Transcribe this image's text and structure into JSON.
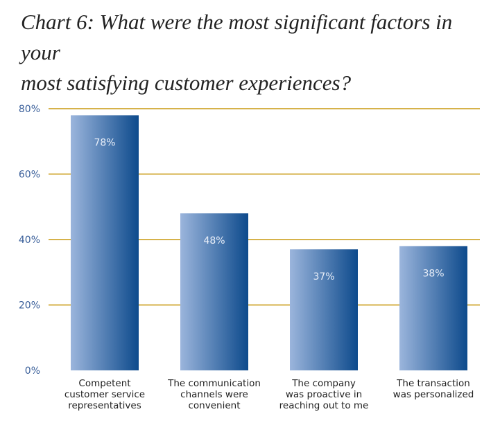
{
  "chart_data": {
    "type": "bar",
    "title": "Chart 6: What were the most significant factors in your most satisfying customer experiences?",
    "title_lines": [
      "Chart 6: What were the most significant factors in your",
      "most satisfying customer experiences?"
    ],
    "categories": [
      "Competent customer service representatives",
      "The communication channels were convenient",
      "The company was proactive in reaching out to me",
      "The transaction was personalized"
    ],
    "category_lines": [
      [
        "Competent",
        "customer service",
        "representatives"
      ],
      [
        "The communication",
        "channels were",
        "convenient"
      ],
      [
        "The company",
        "was proactive in",
        "reaching out to me"
      ],
      [
        "The transaction",
        "was personalized"
      ]
    ],
    "values": [
      78,
      48,
      37,
      38
    ],
    "data_labels": [
      "78%",
      "48%",
      "37%",
      "38%"
    ],
    "yticks": [
      0,
      20,
      40,
      60,
      80
    ],
    "ytick_labels": [
      "0%",
      "20%",
      "40%",
      "60%",
      "80%"
    ],
    "ylim": [
      0,
      80
    ],
    "xlabel": "",
    "ylabel": "",
    "grid": true,
    "legend": "none",
    "colors": {
      "bar_light": "#9bb5dc",
      "bar_dark": "#0d4a8c",
      "grid": "#d6b24a",
      "tick_text": "#3a5f9a",
      "label_text": "#e8eef8"
    }
  }
}
